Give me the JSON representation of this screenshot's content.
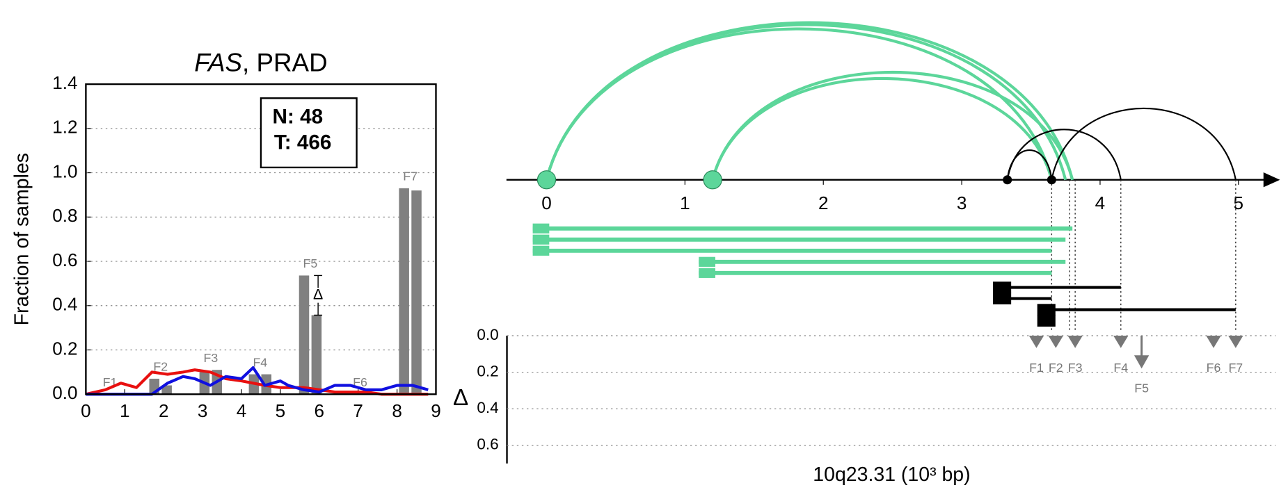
{
  "chart_data": [
    {
      "type": "bar",
      "title_parts": [
        "FAS",
        ", PRAD"
      ],
      "ylabel": "Fraction of samples",
      "xlim": [
        0,
        9
      ],
      "xticks": [
        0,
        1,
        2,
        3,
        4,
        5,
        6,
        7,
        8,
        9
      ],
      "ylim": [
        0,
        1.4
      ],
      "yticks": [
        {
          "value": 0,
          "label": "0.0"
        },
        {
          "value": 0.2,
          "label": "0.2"
        },
        {
          "value": 0.4,
          "label": "0.4"
        },
        {
          "value": 0.6,
          "label": "0.6"
        },
        {
          "value": 0.8,
          "label": "0.8"
        },
        {
          "value": 1.0,
          "label": "1.0"
        },
        {
          "value": 1.2,
          "label": "1.2"
        },
        {
          "value": 1.4,
          "label": "1.4"
        }
      ],
      "grid": true,
      "legend_box": [
        "N: 48",
        "T: 466"
      ],
      "bar_color": "#808080",
      "delta_symbol": "Δ",
      "features": [
        {
          "name": "F1",
          "x": 0.62,
          "values": [
            0,
            0
          ]
        },
        {
          "name": "F2",
          "x": 1.92,
          "values": [
            0.07,
            0.04
          ]
        },
        {
          "name": "F3",
          "x": 3.21,
          "values": [
            0.1,
            0.11
          ]
        },
        {
          "name": "F4",
          "x": 4.48,
          "values": [
            0.09,
            0.09
          ]
        },
        {
          "name": "F5",
          "x": 5.77,
          "values": [
            0.536,
            0.357
          ],
          "show_delta": true
        },
        {
          "name": "F6",
          "x": 7.05,
          "values": [
            0,
            0
          ]
        },
        {
          "name": "F7",
          "x": 8.34,
          "values": [
            0.93,
            0.92
          ]
        }
      ],
      "line_x": [
        0,
        0.5,
        0.9,
        1.3,
        1.7,
        2.1,
        2.5,
        2.8,
        3.2,
        3.6,
        4.0,
        4.3,
        4.6,
        5.0,
        5.2,
        5.6,
        6.0,
        6.4,
        6.8,
        7.2,
        7.6,
        8.0,
        8.4,
        8.8
      ],
      "series": [
        {
          "color": "#e8100f",
          "values": [
            0,
            0.02,
            0.05,
            0.03,
            0.1,
            0.09,
            0.1,
            0.11,
            0.1,
            0.07,
            0.06,
            0.05,
            0.04,
            0.03,
            0.03,
            0.03,
            0.02,
            0.01,
            0.01,
            0.01,
            0,
            0,
            0,
            0
          ]
        },
        {
          "color": "#1010e0",
          "values": [
            0,
            0,
            0,
            0,
            0,
            0.05,
            0.08,
            0.07,
            0.04,
            0.08,
            0.07,
            0.12,
            0.04,
            0.06,
            0.04,
            0.02,
            0.01,
            0.04,
            0.04,
            0.02,
            0.02,
            0.04,
            0.04,
            0.02
          ]
        }
      ]
    },
    {
      "type": "arc",
      "xlim": [
        -0.29,
        5.3
      ],
      "xticks": [
        0,
        1,
        2,
        3,
        4,
        5
      ],
      "xlabel": "10q23.31 (10³ bp)",
      "arcs": [
        {
          "start": 0,
          "end": 3.8,
          "color": "#5cd69a"
        },
        {
          "start": 0,
          "end": 3.75,
          "color": "#5cd69a"
        },
        {
          "start": 0,
          "end": 3.65,
          "color": "#5cd69a"
        },
        {
          "start": 1.2,
          "end": 3.8,
          "color": "#5cd69a"
        },
        {
          "start": 1.2,
          "end": 3.65,
          "color": "#5cd69a"
        },
        {
          "start": 3.33,
          "end": 3.65,
          "color": "#000000"
        },
        {
          "start": 3.33,
          "end": 4.15,
          "color": "#000000"
        },
        {
          "start": 3.65,
          "end": 4.98,
          "color": "#000000"
        }
      ],
      "nodes": [
        {
          "x": 0,
          "color": "#5cd69a"
        },
        {
          "x": 1.2,
          "color": "#5cd69a"
        },
        {
          "x": 3.33,
          "color": "#000000"
        },
        {
          "x": 3.65,
          "color": "#000000"
        }
      ],
      "transcripts": [
        {
          "start": -0.1,
          "end": 3.8,
          "color": "#5cd69a"
        },
        {
          "start": -0.1,
          "end": 3.75,
          "color": "#5cd69a"
        },
        {
          "start": -0.1,
          "end": 3.65,
          "color": "#5cd69a"
        },
        {
          "start": 1.1,
          "end": 3.75,
          "color": "#5cd69a"
        },
        {
          "start": 1.1,
          "end": 3.65,
          "color": "#5cd69a"
        },
        {
          "start": 3.25,
          "end": 4.15,
          "color": "#000000"
        },
        {
          "start": 3.25,
          "end": 3.65,
          "color": "#000000"
        },
        {
          "start": 3.57,
          "end": 4.98,
          "color": "#000000"
        },
        {
          "start": 3.57,
          "end": 3.57,
          "color": "#000000"
        }
      ],
      "guides": [
        3.65,
        3.78,
        3.82,
        4.15,
        4.98
      ],
      "delta_panel": {
        "ylabel": "Δ",
        "ylim": [
          0,
          0.7
        ],
        "yticks": [
          {
            "value": 0,
            "label": "0.0"
          },
          {
            "value": 0.2,
            "label": "0.2"
          },
          {
            "value": 0.4,
            "label": "0.4"
          },
          {
            "value": 0.6,
            "label": "0.6"
          }
        ],
        "grid": true,
        "marker_color": "#777777",
        "features": [
          {
            "name": "F1",
            "x": 3.54,
            "delta": 0
          },
          {
            "name": "F2",
            "x": 3.68,
            "delta": 0
          },
          {
            "name": "F3",
            "x": 3.82,
            "delta": 0
          },
          {
            "name": "F4",
            "x": 4.15,
            "delta": 0
          },
          {
            "name": "F5",
            "x": 4.3,
            "delta": 0.18
          },
          {
            "name": "F6",
            "x": 4.82,
            "delta": 0
          },
          {
            "name": "F7",
            "x": 4.98,
            "delta": 0
          }
        ]
      }
    }
  ]
}
